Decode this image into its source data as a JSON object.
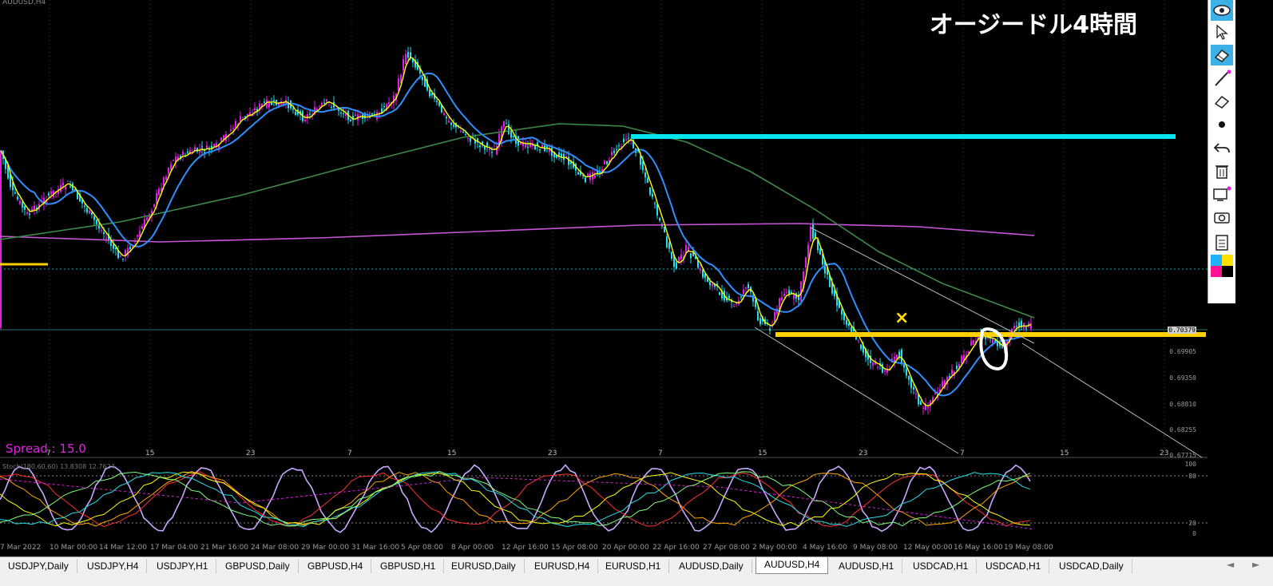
{
  "chart": {
    "symbol": "AUDUSD,H4",
    "title": "オージードル4時間",
    "spread_label": "Spread : 15.0",
    "stoch_label": "Stoch(180,60,60) 13.8308 12.7624",
    "marker": "×",
    "price_labels": [
      "0.70379",
      "0.69905",
      "0.69350",
      "0.68810",
      "0.68255",
      "0.67715"
    ],
    "current_price": "0.70379",
    "stoch_levels": [
      "100",
      "80",
      "20",
      "0"
    ],
    "day_ticks": [
      "7",
      "15",
      "23",
      "7",
      "15",
      "23",
      "7",
      "15",
      "23",
      "7",
      "15",
      "23"
    ],
    "date_ticks": [
      "7 Mar 2022",
      "10 Mar 00:00",
      "14 Mar 12:00",
      "17 Mar 04:00",
      "21 Mar 16:00",
      "24 Mar 08:00",
      "29 Mar 00:00",
      "31 Mar 16:00",
      "5 Apr 08:00",
      "8 Apr 00:00",
      "12 Apr 16:00",
      "15 Apr 08:00",
      "20 Apr 00:00",
      "22 Apr 16:00",
      "27 Apr 08:00",
      "2 May 00:00",
      "4 May 16:00",
      "9 May 08:00",
      "12 May 00:00",
      "16 May 16:00",
      "19 May 08:00"
    ],
    "colors": {
      "up": "#e31ee3",
      "down": "#22e0ee",
      "ma_fast": "#ffff00",
      "ma_mid": "#2f8fff",
      "ma_slow": "#3c8a4a",
      "ma_long": "#c855d8",
      "resistance": "#00e5ee",
      "support": "#ffd000"
    }
  },
  "toolbar": {
    "tools": [
      "eye-icon",
      "cursor-icon",
      "eraser-icon",
      "pen-icon",
      "pen-eraser-icon",
      "dot-icon",
      "undo-icon",
      "trash-icon",
      "screenshot-icon",
      "camera-icon",
      "clipboard-icon",
      "palette-icon"
    ]
  },
  "tabs": [
    "USDJPY,Daily",
    "USDJPY,H4",
    "USDJPY,H1",
    "GBPUSD,Daily",
    "GBPUSD,H4",
    "GBPUSD,H1",
    "EURUSD,Daily",
    "EURUSD,H4",
    "EURUSD,H1",
    "AUDUSD,Daily",
    "AUDUSD,H4",
    "AUDUSD,H1",
    "USDCAD,H1",
    "USDCAD,H1",
    "USDCAD,Daily"
  ],
  "active_tab": "AUDUSD,H4",
  "nav": {
    "prev": "◄",
    "next": "►"
  }
}
